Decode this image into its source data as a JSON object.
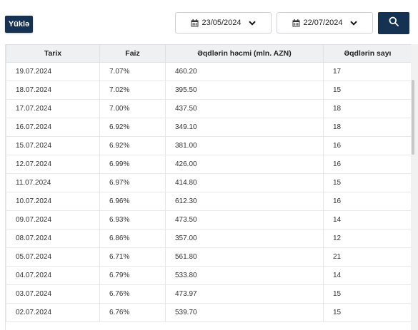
{
  "toolbar": {
    "upload_label": "Yüklə",
    "date_from": "23/05/2024",
    "date_to": "22/07/2024"
  },
  "table": {
    "headers": [
      "Tarix",
      "Faiz",
      "Əqdlərin həcmi (mln. AZN)",
      "Əqdlərin sayı"
    ],
    "rows": [
      [
        "19.07.2024",
        "7.07%",
        "460.20",
        "17"
      ],
      [
        "18.07.2024",
        "7.02%",
        "395.50",
        "15"
      ],
      [
        "17.07.2024",
        "7.00%",
        "437.50",
        "18"
      ],
      [
        "16.07.2024",
        "6.92%",
        "349.10",
        "18"
      ],
      [
        "15.07.2024",
        "6.92%",
        "381.00",
        "16"
      ],
      [
        "12.07.2024",
        "6.99%",
        "426.00",
        "16"
      ],
      [
        "11.07.2024",
        "6.97%",
        "414.80",
        "15"
      ],
      [
        "10.07.2024",
        "6.96%",
        "612.30",
        "16"
      ],
      [
        "09.07.2024",
        "6.93%",
        "473.50",
        "14"
      ],
      [
        "08.07.2024",
        "6.86%",
        "357.00",
        "12"
      ],
      [
        "05.07.2024",
        "6.71%",
        "561.80",
        "21"
      ],
      [
        "04.07.2024",
        "6.79%",
        "533.80",
        "14"
      ],
      [
        "03.07.2024",
        "6.76%",
        "473.97",
        "15"
      ],
      [
        "02.07.2024",
        "6.76%",
        "539.70",
        "15"
      ]
    ]
  },
  "colors": {
    "primary": "#163252",
    "header_bg": "#eef0f2",
    "border": "#e6e8eb"
  }
}
